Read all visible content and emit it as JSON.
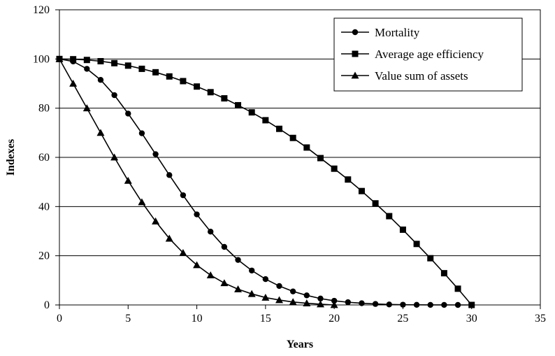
{
  "chart_data": {
    "type": "line",
    "xlabel": "Years",
    "ylabel": "Indexes",
    "xlim": [
      0,
      35
    ],
    "ylim": [
      0,
      120
    ],
    "xticks": [
      0,
      5,
      10,
      15,
      20,
      25,
      30,
      35
    ],
    "yticks": [
      0,
      20,
      40,
      60,
      80,
      100,
      120
    ],
    "grid": "horizontal",
    "legend_position": "top-right",
    "color": "#000000",
    "series": [
      {
        "name": "Mortality",
        "marker": "circle",
        "x": [
          0,
          1,
          2,
          3,
          4,
          5,
          6,
          7,
          8,
          9,
          10,
          11,
          12,
          13,
          14,
          15,
          16,
          17,
          18,
          19,
          20,
          21,
          22,
          23,
          24,
          25,
          26,
          27,
          28,
          29,
          30
        ],
        "values": [
          100,
          99,
          96,
          91.5,
          85.3,
          77.8,
          69.8,
          61.3,
          52.8,
          44.6,
          36.8,
          29.8,
          23.6,
          18.3,
          14,
          10.5,
          7.7,
          5.5,
          3.9,
          2.6,
          1.7,
          1.1,
          0.7,
          0.4,
          0.2,
          0.1,
          0.05,
          0.02,
          0.01,
          0,
          0
        ]
      },
      {
        "name": "Average age efficiency",
        "marker": "square",
        "x": [
          0,
          1,
          2,
          3,
          4,
          5,
          6,
          7,
          8,
          9,
          10,
          11,
          12,
          13,
          14,
          15,
          16,
          17,
          18,
          19,
          20,
          21,
          22,
          23,
          24,
          25,
          26,
          27,
          28,
          29,
          30
        ],
        "values": [
          100,
          99.9,
          99.6,
          99.1,
          98.3,
          97.3,
          96,
          94.6,
          92.9,
          91,
          88.8,
          86.5,
          84,
          81.2,
          78.3,
          75.1,
          71.6,
          67.9,
          64,
          59.7,
          55.4,
          51,
          46.3,
          41.3,
          36.1,
          30.6,
          24.8,
          19,
          12.9,
          6.6,
          0
        ]
      },
      {
        "name": "Value sum of assets",
        "marker": "triangle",
        "x": [
          0,
          1,
          2,
          3,
          4,
          5,
          6,
          7,
          8,
          9,
          10,
          11,
          12,
          13,
          14,
          15,
          16,
          17,
          18,
          19,
          20
        ],
        "values": [
          100,
          90,
          80,
          70,
          60,
          50.5,
          41.8,
          34,
          27,
          21.2,
          16.2,
          12.1,
          8.9,
          6.4,
          4.5,
          3,
          2,
          1.2,
          0.7,
          0.3,
          0
        ]
      }
    ]
  }
}
